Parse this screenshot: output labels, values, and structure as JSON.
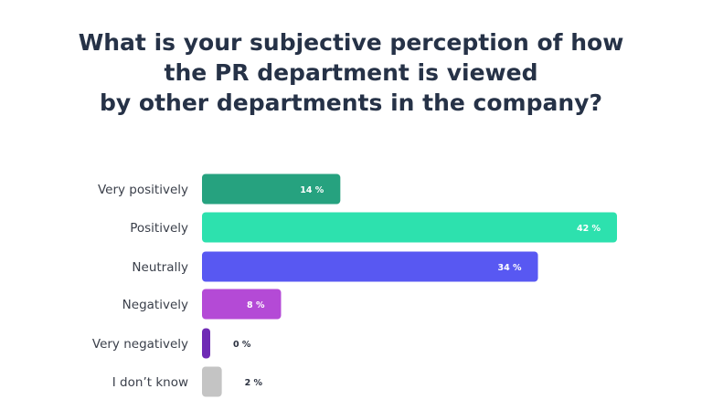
{
  "chart_data": {
    "type": "bar",
    "orientation": "horizontal",
    "title_lines": [
      "What is your subjective perception of how",
      "the PR department is viewed",
      "by other departments in the company?"
    ],
    "categories": [
      "Very positively",
      "Positively",
      "Neutrally",
      "Negatively",
      "Very negatively",
      "I don’t know"
    ],
    "values": [
      14,
      42,
      34,
      8,
      0,
      2
    ],
    "value_labels": [
      "14 %",
      "42 %",
      "34 %",
      "8 %",
      "0 %",
      "2 %"
    ],
    "colors": [
      "#26a27f",
      "#2de1ae",
      "#5858f2",
      "#b44ad6",
      "#6f2ab5",
      "#c4c4c4"
    ],
    "xlim": [
      0,
      42
    ],
    "grid": false,
    "legend": "none"
  }
}
